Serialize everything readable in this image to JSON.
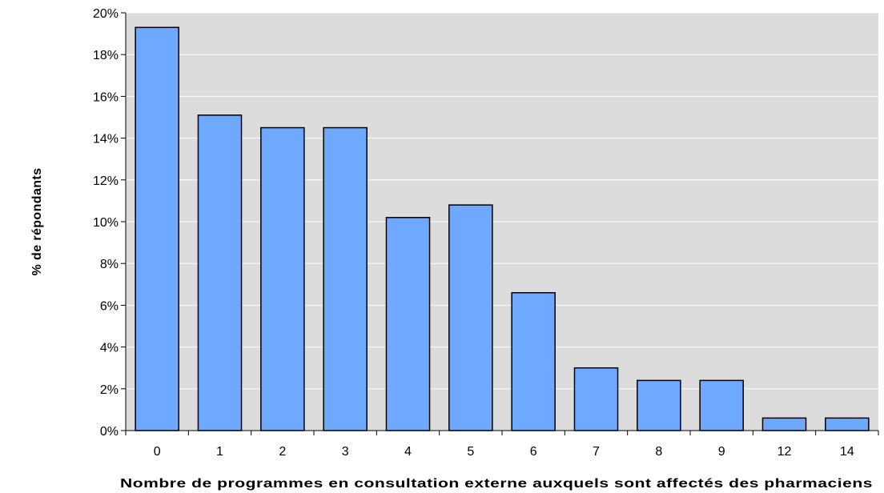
{
  "chart_data": {
    "type": "bar",
    "title": "",
    "xlabel": "Nombre de programmes en consultation externe auxquels sont affectés des pharmaciens",
    "ylabel": "% de répondants",
    "categories": [
      "0",
      "1",
      "2",
      "3",
      "4",
      "5",
      "6",
      "7",
      "8",
      "9",
      "12",
      "14"
    ],
    "values": [
      19.3,
      15.1,
      14.5,
      14.5,
      10.2,
      10.8,
      6.6,
      3.0,
      2.4,
      2.4,
      0.6,
      0.6
    ],
    "ylim": [
      0,
      20
    ],
    "yticks": [
      "0%",
      "2%",
      "4%",
      "6%",
      "8%",
      "10%",
      "12%",
      "14%",
      "16%",
      "18%",
      "20%"
    ],
    "grid": true,
    "legend": "none",
    "colors": {
      "bar_fill": "#6fa8ff",
      "bar_stroke": "#000000",
      "plot_background": "#dcdcdc",
      "gridline": "#ffffff"
    }
  }
}
